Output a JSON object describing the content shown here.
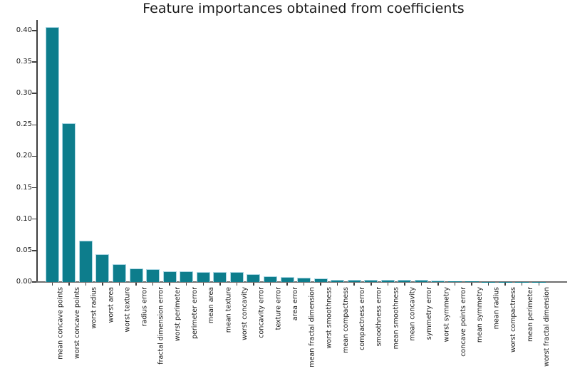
{
  "chart_data": {
    "type": "bar",
    "title": "Feature importances obtained from coefficients",
    "xlabel": "",
    "ylabel": "",
    "categories": [
      "mean concave points",
      "worst concave points",
      "worst radius",
      "worst area",
      "worst texture",
      "radius error",
      "fractal dimension error",
      "worst perimeter",
      "perimeter error",
      "mean area",
      "mean texture",
      "worst concavity",
      "concavity error",
      "texture error",
      "area error",
      "mean fractal dimension",
      "worst smoothness",
      "mean compactness",
      "compactness error",
      "smoothness error",
      "mean smoothness",
      "mean concavity",
      "symmetry error",
      "worst symmetry",
      "concave points error",
      "mean symmetry",
      "mean radius",
      "worst compactness",
      "mean perimeter",
      "worst fractal dimension"
    ],
    "values": [
      0.406,
      0.252,
      0.066,
      0.0445,
      0.0285,
      0.022,
      0.02,
      0.0175,
      0.0165,
      0.016,
      0.016,
      0.0158,
      0.012,
      0.0095,
      0.008,
      0.0068,
      0.006,
      0.0038,
      0.0037,
      0.0034,
      0.0034,
      0.0034,
      0.003,
      0.0027,
      0.0012,
      0.0006,
      0.0004,
      0.0003,
      0.0002,
      0.0001
    ],
    "ylim": [
      0,
      0.42
    ],
    "yticks": [
      0.0,
      0.05,
      0.1,
      0.15,
      0.2,
      0.25,
      0.3,
      0.35,
      0.4
    ],
    "x_tick_rotation": 90,
    "grid": false,
    "legend": false,
    "bar_color": "#0d7d8c",
    "bar_edge_color": "#aad6e3",
    "axis_color": "#3f3f3f",
    "text_color": "#1a1a1a"
  }
}
